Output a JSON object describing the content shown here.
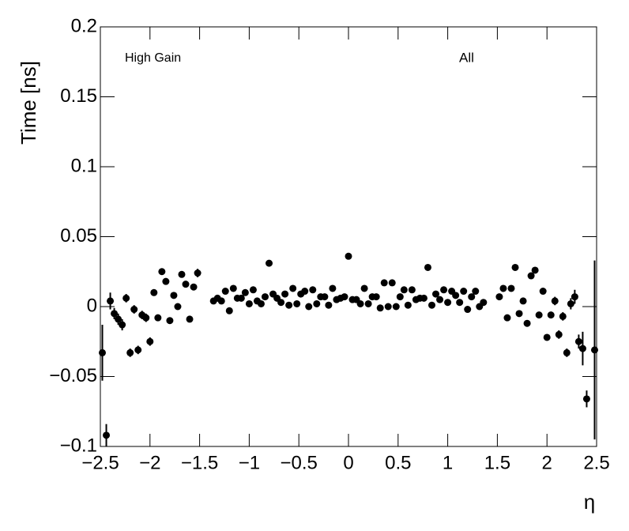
{
  "chart_data": {
    "type": "scatter",
    "y_label": "Time [ns]",
    "x_label": "η",
    "annotations": [
      "High Gain",
      "All"
    ],
    "xlim": [
      -2.5,
      2.5
    ],
    "ylim": [
      -0.1,
      0.2
    ],
    "xticks": [
      {
        "value": -2.5,
        "label": "−2.5"
      },
      {
        "value": -2,
        "label": "−2"
      },
      {
        "value": -1.5,
        "label": "−1.5"
      },
      {
        "value": -1,
        "label": "−1"
      },
      {
        "value": -0.5,
        "label": "−0.5"
      },
      0,
      0.5,
      1,
      1.5,
      2,
      2.5
    ],
    "yticks": [
      {
        "value": -0.1,
        "label": "−0.1"
      },
      {
        "value": -0.05,
        "label": "−0.05"
      },
      0,
      0.05,
      0.1,
      0.15,
      0.2
    ],
    "series": [
      {
        "color": "#000000",
        "x": [
          -2.48,
          -2.44,
          -2.4,
          -2.36,
          -2.32,
          -2.28,
          -2.24,
          -2.2,
          -2.16,
          -2.12,
          -2.08,
          -2.04,
          -2.0,
          -1.96,
          -1.92,
          -1.88,
          -1.84,
          -1.8,
          -1.76,
          -1.72,
          -1.68,
          -1.64,
          -1.6,
          -1.56,
          -1.52,
          -1.36,
          -1.32,
          -1.28,
          -1.24,
          -1.2,
          -1.16,
          -1.12,
          -1.08,
          -1.04,
          -1.0,
          -0.96,
          -0.92,
          -0.88,
          -0.84,
          -0.8,
          -0.76,
          -0.72,
          -0.68,
          -0.64,
          -0.6,
          -0.56,
          -0.52,
          -0.48,
          -0.44,
          -0.4,
          -0.36,
          -0.32,
          -0.28,
          -0.24,
          -0.2,
          -0.16,
          -0.12,
          -0.08,
          -0.04,
          0,
          0.04,
          0.08,
          0.12,
          0.16,
          0.2,
          0.24,
          0.28,
          0.32,
          0.36,
          0.4,
          0.44,
          0.48,
          0.52,
          0.56,
          0.6,
          0.64,
          0.68,
          0.72,
          0.76,
          0.8,
          0.84,
          0.88,
          0.92,
          0.96,
          1.0,
          1.04,
          1.08,
          1.12,
          1.16,
          1.2,
          1.24,
          1.28,
          1.32,
          1.36,
          1.52,
          1.56,
          1.6,
          1.64,
          1.68,
          1.72,
          1.76,
          1.8,
          1.84,
          1.88,
          1.92,
          1.96,
          2.0,
          2.04,
          2.08,
          2.12,
          2.16,
          2.2,
          2.24,
          2.28,
          2.32,
          2.36,
          2.4,
          2.48
        ],
        "values": [
          -0.033,
          -0.092,
          0.004,
          -0.005,
          -0.009,
          -0.013,
          0.006,
          -0.033,
          -0.002,
          -0.031,
          -0.006,
          -0.008,
          -0.025,
          0.01,
          -0.008,
          0.025,
          0.018,
          -0.01,
          0.008,
          0.0,
          0.023,
          0.016,
          -0.009,
          0.014,
          0.024,
          0.004,
          0.006,
          0.004,
          0.011,
          -0.003,
          0.013,
          0.006,
          0.006,
          0.01,
          0.002,
          0.012,
          0.004,
          0.002,
          0.007,
          0.031,
          0.009,
          0.006,
          0.003,
          0.009,
          0.001,
          0.013,
          0.002,
          0.009,
          0.011,
          0.0,
          0.012,
          0.002,
          0.007,
          0.007,
          0.001,
          0.013,
          0.005,
          0.006,
          0.007,
          0.036,
          0.005,
          0.005,
          0.002,
          0.013,
          0.002,
          0.007,
          0.007,
          -0.001,
          0.017,
          0.0,
          0.017,
          0.0,
          0.007,
          0.012,
          0.001,
          0.012,
          0.005,
          0.006,
          0.006,
          0.028,
          0.001,
          0.009,
          0.005,
          0.012,
          0.003,
          0.011,
          0.008,
          0.003,
          0.011,
          -0.002,
          0.007,
          0.011,
          0.0,
          0.003,
          0.007,
          0.013,
          -0.008,
          0.013,
          0.028,
          -0.005,
          0.004,
          -0.012,
          0.022,
          0.026,
          -0.006,
          0.011,
          -0.022,
          -0.006,
          0.004,
          -0.02,
          -0.007,
          -0.033,
          0.002,
          0.007,
          -0.025,
          -0.03,
          -0.066,
          -0.031
        ],
        "errors": [
          0.02,
          0.008,
          0.006,
          0.004,
          0.004,
          0.004,
          0.003,
          0.003,
          0.003,
          0.003,
          0.003,
          0.003,
          0.003,
          0.002,
          0.002,
          0.002,
          0.002,
          0.002,
          0.002,
          0.002,
          0.002,
          0.002,
          0.002,
          0.002,
          0.003,
          0.002,
          0.002,
          0.002,
          0.002,
          0.002,
          0.002,
          0.002,
          0.002,
          0.002,
          0.002,
          0.002,
          0.002,
          0.002,
          0.002,
          0.002,
          0.002,
          0.002,
          0.002,
          0.002,
          0.002,
          0.002,
          0.002,
          0.002,
          0.002,
          0.002,
          0.002,
          0.002,
          0.002,
          0.002,
          0.002,
          0.002,
          0.002,
          0.002,
          0.002,
          0.002,
          0.002,
          0.002,
          0.002,
          0.002,
          0.002,
          0.002,
          0.002,
          0.002,
          0.002,
          0.002,
          0.002,
          0.002,
          0.002,
          0.002,
          0.002,
          0.002,
          0.002,
          0.002,
          0.002,
          0.002,
          0.002,
          0.002,
          0.002,
          0.002,
          0.002,
          0.002,
          0.002,
          0.002,
          0.002,
          0.002,
          0.002,
          0.002,
          0.002,
          0.002,
          0.002,
          0.002,
          0.002,
          0.002,
          0.002,
          0.002,
          0.002,
          0.002,
          0.002,
          0.002,
          0.002,
          0.002,
          0.002,
          0.002,
          0.003,
          0.003,
          0.003,
          0.003,
          0.004,
          0.005,
          0.005,
          0.012,
          0.006,
          0.064
        ]
      }
    ]
  }
}
